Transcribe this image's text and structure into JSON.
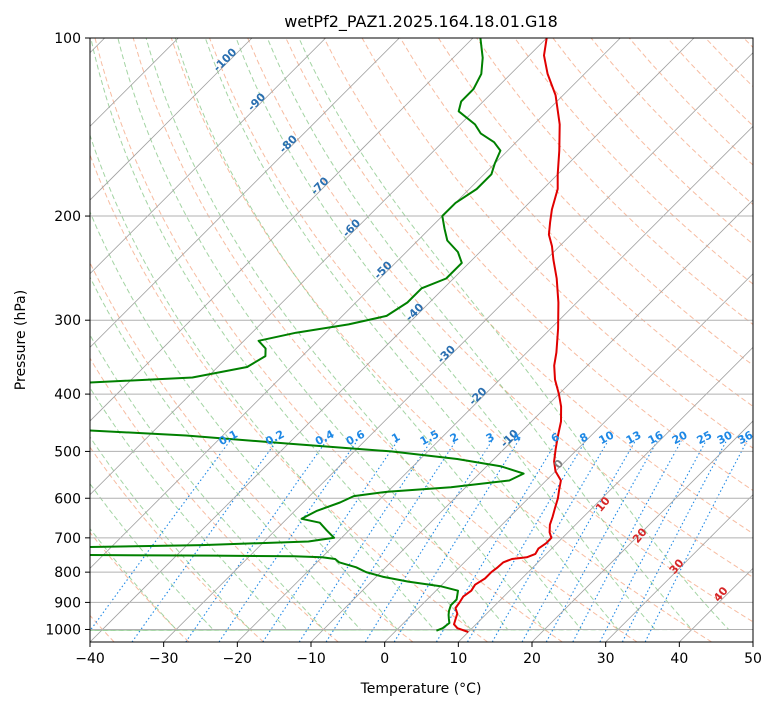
{
  "chart_data": {
    "type": "line",
    "title": "wetPf2_PAZ1.2025.164.18.01.G18",
    "xlabel": "Temperature (°C)",
    "ylabel": "Pressure (hPa)",
    "xlim": [
      -40,
      50
    ],
    "ylim": [
      1050,
      100
    ],
    "y_scale": "log",
    "skew_t": true,
    "grid": true,
    "x_ticks": [
      -40,
      -30,
      -20,
      -10,
      0,
      10,
      20,
      30,
      40,
      50
    ],
    "y_ticks": [
      100,
      200,
      300,
      400,
      500,
      600,
      700,
      800,
      900,
      1000
    ],
    "series": [
      {
        "color": "#e00000",
        "x_unit": "°C",
        "points": [
          [
            10,
            1010
          ],
          [
            8,
            995
          ],
          [
            7,
            980
          ],
          [
            6.5,
            960
          ],
          [
            6,
            940
          ],
          [
            5,
            920
          ],
          [
            4.8,
            900
          ],
          [
            4.5,
            880
          ],
          [
            4.8,
            860
          ],
          [
            4.5,
            840
          ],
          [
            5,
            820
          ],
          [
            5,
            800
          ],
          [
            5.2,
            785
          ],
          [
            5.3,
            770
          ],
          [
            6,
            760
          ],
          [
            7.8,
            755
          ],
          [
            8.5,
            745
          ],
          [
            8.2,
            730
          ],
          [
            8.5,
            715
          ],
          [
            8.5,
            700
          ],
          [
            7.5,
            685
          ],
          [
            6.5,
            665
          ],
          [
            5.8,
            645
          ],
          [
            5,
            625
          ],
          [
            4,
            600
          ],
          [
            3,
            580
          ],
          [
            2,
            560
          ],
          [
            0,
            540
          ],
          [
            -1.5,
            520
          ],
          [
            -3,
            495
          ],
          [
            -4.5,
            470
          ],
          [
            -6,
            445
          ],
          [
            -8,
            420
          ],
          [
            -10,
            400
          ],
          [
            -12.5,
            378
          ],
          [
            -14.5,
            358
          ],
          [
            -16,
            340
          ],
          [
            -19,
            310
          ],
          [
            -22.5,
            280
          ],
          [
            -26,
            255
          ],
          [
            -29,
            237
          ],
          [
            -31,
            225
          ],
          [
            -33,
            215
          ],
          [
            -34.5,
            205
          ],
          [
            -36,
            195
          ],
          [
            -38,
            180
          ],
          [
            -40,
            170
          ],
          [
            -43,
            155
          ],
          [
            -46.5,
            140
          ],
          [
            -51,
            125
          ],
          [
            -55,
            115
          ],
          [
            -58,
            107
          ],
          [
            -60,
            100
          ]
        ]
      },
      {
        "color": "#008000",
        "x_unit": "°C",
        "points": [
          [
            5.5,
            1005
          ],
          [
            6,
            995
          ],
          [
            6.2,
            975
          ],
          [
            5.6,
            960
          ],
          [
            5,
            945
          ],
          [
            4.5,
            930
          ],
          [
            4,
            910
          ],
          [
            4,
            890
          ],
          [
            3.5,
            875
          ],
          [
            3,
            860
          ],
          [
            0,
            845
          ],
          [
            -5,
            830
          ],
          [
            -9,
            815
          ],
          [
            -12,
            800
          ],
          [
            -14,
            785
          ],
          [
            -17,
            770
          ],
          [
            -18,
            760
          ],
          [
            -20,
            755
          ],
          [
            -24,
            752
          ],
          [
            -35,
            750
          ],
          [
            -55,
            748
          ],
          [
            -75,
            745
          ],
          [
            -70,
            735
          ],
          [
            -65,
            730
          ],
          [
            -38,
            720
          ],
          [
            -24,
            710
          ],
          [
            -21,
            700
          ],
          [
            -23,
            680
          ],
          [
            -25,
            660
          ],
          [
            -28,
            650
          ],
          [
            -27,
            630
          ],
          [
            -25,
            610
          ],
          [
            -24,
            595
          ],
          [
            -20,
            585
          ],
          [
            -12,
            575
          ],
          [
            -5,
            560
          ],
          [
            -4,
            545
          ],
          [
            -8,
            530
          ],
          [
            -15,
            515
          ],
          [
            -25,
            500
          ],
          [
            -40,
            485
          ],
          [
            -55,
            470
          ],
          [
            -70,
            460
          ],
          [
            -85,
            455
          ],
          [
            -95,
            450
          ],
          [
            -110,
            420
          ],
          [
            -130,
            395
          ],
          [
            -110,
            390
          ],
          [
            -80,
            385
          ],
          [
            -62,
            375
          ],
          [
            -56,
            360
          ],
          [
            -55,
            345
          ],
          [
            -56,
            335
          ],
          [
            -58,
            325
          ],
          [
            -54,
            315
          ],
          [
            -48,
            305
          ],
          [
            -44,
            295
          ],
          [
            -43,
            280
          ],
          [
            -43,
            265
          ],
          [
            -41,
            255
          ],
          [
            -41,
            240
          ],
          [
            -43,
            230
          ],
          [
            -46,
            220
          ],
          [
            -48,
            210
          ],
          [
            -50,
            200
          ],
          [
            -50,
            190
          ],
          [
            -49,
            180
          ],
          [
            -49,
            170
          ],
          [
            -50,
            163
          ],
          [
            -51,
            155
          ],
          [
            -53,
            150
          ],
          [
            -56,
            145
          ],
          [
            -58,
            140
          ],
          [
            -62,
            133
          ],
          [
            -63,
            128
          ],
          [
            -63,
            122
          ],
          [
            -64,
            115
          ],
          [
            -66,
            108
          ],
          [
            -69,
            100
          ]
        ]
      }
    ],
    "annotations": {
      "dry_adiabat_labels": [
        "-100",
        "-90",
        "-80",
        "-70",
        "-60",
        "-50",
        "-40",
        "-30",
        "-20",
        "-10"
      ],
      "mixing_ratio_labels": [
        "0.1",
        "0.2",
        "0.4",
        "0.6",
        "1",
        "1.5",
        "2",
        "3",
        "4",
        "6",
        "8",
        "10",
        "13",
        "16",
        "20",
        "25",
        "30",
        "36"
      ],
      "moist_adiabat_labels": [
        "0",
        "10",
        "20",
        "30",
        "40"
      ]
    },
    "colors": {
      "temperature": "#e00000",
      "dewpoint": "#008000",
      "isotherm": "#a0a0a0",
      "dry_adiabat": "#f4a582",
      "moist_adiabat": "#8cc98c",
      "mixing_ratio": "#1e88e5",
      "dry_label": "#2a6fb0",
      "mixing_label": "#1e88e5",
      "moist_label": "#d62728",
      "moist_zero_label": "#808080"
    }
  }
}
